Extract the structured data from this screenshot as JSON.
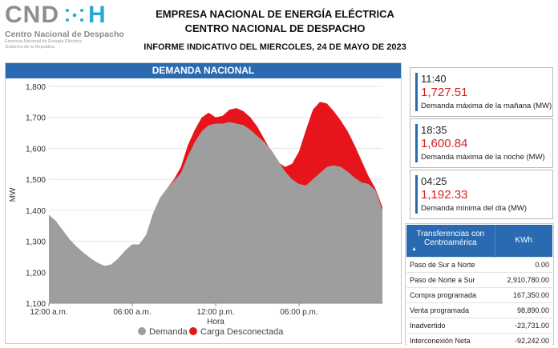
{
  "header": {
    "logo_mark": "CND",
    "logo_letter": "H",
    "logo_name": "Centro Nacional de Despacho",
    "logo_sub1": "Empresa Nacional de Energía Eléctrica",
    "logo_sub2": "Gobierno de la República",
    "line1": "EMPRESA NACIONAL DE ENERGÍA ELÉCTRICA",
    "line2": "CENTRO NACIONAL DE DESPACHO",
    "line3": "INFORME INDICATIVO DEL MIERCOLES, 24 DE MAYO DE 2023"
  },
  "colors": {
    "accent": "#2a6ab1",
    "demanda": "#9e9e9e",
    "carga": "#e8141b",
    "value_red": "#d62222"
  },
  "chart_data": {
    "type": "area",
    "title": "DEMANDA NACIONAL",
    "xlabel": "Hora",
    "ylabel": "MW",
    "ylim": [
      1100,
      1800
    ],
    "yticks": [
      "1,100",
      "1,200",
      "1,300",
      "1,400",
      "1,500",
      "1,600",
      "1,700",
      "1,800"
    ],
    "xlim_hours": [
      0,
      24
    ],
    "xticks": [
      {
        "hour": 0,
        "label": "12:00 a.m."
      },
      {
        "hour": 6,
        "label": "06:00 a.m."
      },
      {
        "hour": 12,
        "label": "12:00 p.m."
      },
      {
        "hour": 18,
        "label": "06:00 p.m."
      }
    ],
    "grid": true,
    "legend_position": "bottom",
    "series": [
      {
        "name": "Demanda",
        "color": "#9e9e9e",
        "x_hours": [
          0,
          0.5,
          1,
          1.5,
          2,
          2.5,
          3,
          3.5,
          4,
          4.5,
          5,
          5.5,
          6,
          6.5,
          7,
          7.5,
          8,
          8.5,
          9,
          9.5,
          10,
          10.5,
          11,
          11.5,
          12,
          12.5,
          13,
          13.5,
          14,
          14.5,
          15,
          15.5,
          16,
          16.5,
          17,
          17.5,
          18,
          18.5,
          19,
          19.5,
          20,
          20.5,
          21,
          21.5,
          22,
          22.5,
          23,
          23.5,
          24
        ],
        "values": [
          1385,
          1365,
          1335,
          1305,
          1282,
          1262,
          1245,
          1230,
          1220,
          1225,
          1245,
          1270,
          1290,
          1290,
          1320,
          1390,
          1440,
          1470,
          1495,
          1520,
          1575,
          1620,
          1655,
          1675,
          1680,
          1680,
          1685,
          1680,
          1675,
          1660,
          1640,
          1620,
          1595,
          1560,
          1525,
          1500,
          1485,
          1480,
          1500,
          1520,
          1540,
          1545,
          1540,
          1525,
          1505,
          1490,
          1485,
          1465,
          1400
        ]
      },
      {
        "name": "Carga Desconectada",
        "color": "#e8141b",
        "x_hours": [
          0,
          0.5,
          1,
          1.5,
          2,
          2.5,
          3,
          3.5,
          4,
          4.5,
          5,
          5.5,
          6,
          6.5,
          7,
          7.5,
          8,
          8.5,
          9,
          9.5,
          10,
          10.5,
          11,
          11.5,
          12,
          12.5,
          13,
          13.5,
          14,
          14.5,
          15,
          15.5,
          16,
          16.5,
          17,
          17.5,
          18,
          18.5,
          19,
          19.5,
          20,
          20.5,
          21,
          21.5,
          22,
          22.5,
          23,
          23.5,
          24
        ],
        "values": [
          1385,
          1365,
          1335,
          1305,
          1282,
          1262,
          1245,
          1230,
          1220,
          1225,
          1245,
          1270,
          1290,
          1290,
          1320,
          1390,
          1440,
          1470,
          1500,
          1540,
          1610,
          1660,
          1700,
          1715,
          1700,
          1705,
          1725,
          1730,
          1720,
          1700,
          1670,
          1630,
          1590,
          1555,
          1540,
          1550,
          1590,
          1660,
          1725,
          1750,
          1745,
          1720,
          1690,
          1655,
          1610,
          1560,
          1510,
          1470,
          1410
        ]
      }
    ]
  },
  "cards": [
    {
      "time": "11:40",
      "value": "1,727.51",
      "label": "Demanda máxima de la mañana (MW)"
    },
    {
      "time": "18:35",
      "value": "1,600.84",
      "label": "Demanda máxima de la noche (MW)"
    },
    {
      "time": "04:25",
      "value": "1,192.33",
      "label": "Demanda mínima del día (MW)"
    }
  ],
  "transfers": {
    "header_col1": "Transferencias con Centroamérica",
    "header_col2": "KWh",
    "sort_icon": "triangle-up-icon",
    "rows": [
      {
        "label": "Paso de Sur a Norte",
        "value": "0.00"
      },
      {
        "label": "Paso de Norte a Sur",
        "value": "2,910,780.00"
      },
      {
        "label": "Compra programada",
        "value": "167,350.00"
      },
      {
        "label": "Venta programada",
        "value": "98,890.00"
      },
      {
        "label": "Inadvertido",
        "value": "-23,731.00"
      },
      {
        "label": "Interconexión Neta",
        "value": "-92,242.00"
      }
    ]
  }
}
